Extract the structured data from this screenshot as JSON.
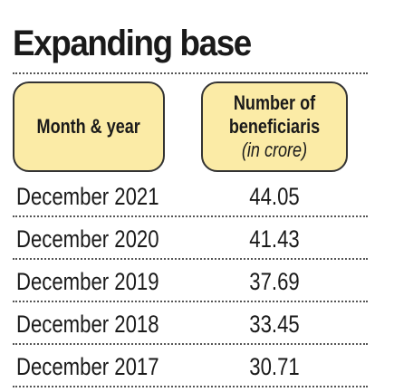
{
  "title": "Expanding base",
  "table": {
    "header": [
      "Month & year",
      {
        "title": "Number of beneficiaris",
        "unit": "(in crore)"
      }
    ],
    "rows": [
      [
        "December 2021",
        44.05
      ],
      [
        "December 2020",
        41.43
      ],
      [
        "December 2019",
        37.69
      ],
      [
        "December 2018",
        33.45
      ],
      [
        "December 2017",
        30.71
      ]
    ]
  }
}
